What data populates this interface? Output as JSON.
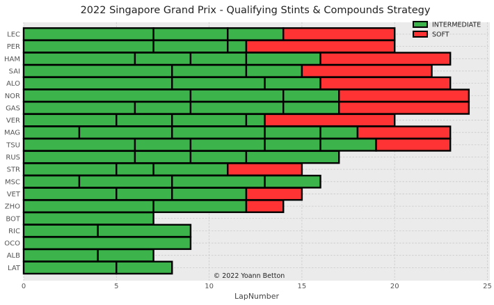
{
  "chart_data": {
    "type": "bar",
    "orientation": "horizontal-stacked",
    "title": "2022 Singapore Grand Prix - Qualifying Stints & Compounds Strategy",
    "xlabel": "LapNumber",
    "ylabel": "",
    "xlim": [
      0,
      25
    ],
    "x_ticks": [
      0,
      5,
      10,
      15,
      20,
      25
    ],
    "grid": true,
    "legend_position": "top-right",
    "annotation": "© 2022 Yoann Betton",
    "compounds": [
      {
        "name": "INTERMEDIATE",
        "color": "#3cb44b"
      },
      {
        "name": "SOFT",
        "color": "#ff3333"
      }
    ],
    "categories": [
      "LEC",
      "PER",
      "HAM",
      "SAI",
      "ALO",
      "NOR",
      "GAS",
      "VER",
      "MAG",
      "TSU",
      "RUS",
      "STR",
      "MSC",
      "VET",
      "ZHO",
      "BOT",
      "RIC",
      "OCO",
      "ALB",
      "LAT"
    ],
    "stints": [
      {
        "driver": "LEC",
        "segments": [
          {
            "laps": 7,
            "compound": "INTERMEDIATE"
          },
          {
            "laps": 4,
            "compound": "INTERMEDIATE"
          },
          {
            "laps": 3,
            "compound": "INTERMEDIATE"
          },
          {
            "laps": 6,
            "compound": "SOFT"
          }
        ]
      },
      {
        "driver": "PER",
        "segments": [
          {
            "laps": 7,
            "compound": "INTERMEDIATE"
          },
          {
            "laps": 4,
            "compound": "INTERMEDIATE"
          },
          {
            "laps": 1,
            "compound": "INTERMEDIATE"
          },
          {
            "laps": 8,
            "compound": "SOFT"
          }
        ]
      },
      {
        "driver": "HAM",
        "segments": [
          {
            "laps": 6,
            "compound": "INTERMEDIATE"
          },
          {
            "laps": 3,
            "compound": "INTERMEDIATE"
          },
          {
            "laps": 3,
            "compound": "INTERMEDIATE"
          },
          {
            "laps": 4,
            "compound": "INTERMEDIATE"
          },
          {
            "laps": 7,
            "compound": "SOFT"
          }
        ]
      },
      {
        "driver": "SAI",
        "segments": [
          {
            "laps": 8,
            "compound": "INTERMEDIATE"
          },
          {
            "laps": 4,
            "compound": "INTERMEDIATE"
          },
          {
            "laps": 3,
            "compound": "INTERMEDIATE"
          },
          {
            "laps": 7,
            "compound": "SOFT"
          }
        ]
      },
      {
        "driver": "ALO",
        "segments": [
          {
            "laps": 8,
            "compound": "INTERMEDIATE"
          },
          {
            "laps": 5,
            "compound": "INTERMEDIATE"
          },
          {
            "laps": 3,
            "compound": "INTERMEDIATE"
          },
          {
            "laps": 7,
            "compound": "SOFT"
          }
        ]
      },
      {
        "driver": "NOR",
        "segments": [
          {
            "laps": 9,
            "compound": "INTERMEDIATE"
          },
          {
            "laps": 5,
            "compound": "INTERMEDIATE"
          },
          {
            "laps": 3,
            "compound": "INTERMEDIATE"
          },
          {
            "laps": 7,
            "compound": "SOFT"
          }
        ]
      },
      {
        "driver": "GAS",
        "segments": [
          {
            "laps": 6,
            "compound": "INTERMEDIATE"
          },
          {
            "laps": 3,
            "compound": "INTERMEDIATE"
          },
          {
            "laps": 5,
            "compound": "INTERMEDIATE"
          },
          {
            "laps": 3,
            "compound": "INTERMEDIATE"
          },
          {
            "laps": 7,
            "compound": "SOFT"
          }
        ]
      },
      {
        "driver": "VER",
        "segments": [
          {
            "laps": 5,
            "compound": "INTERMEDIATE"
          },
          {
            "laps": 3,
            "compound": "INTERMEDIATE"
          },
          {
            "laps": 4,
            "compound": "INTERMEDIATE"
          },
          {
            "laps": 1,
            "compound": "INTERMEDIATE"
          },
          {
            "laps": 7,
            "compound": "SOFT"
          }
        ]
      },
      {
        "driver": "MAG",
        "segments": [
          {
            "laps": 3,
            "compound": "INTERMEDIATE"
          },
          {
            "laps": 5,
            "compound": "INTERMEDIATE"
          },
          {
            "laps": 5,
            "compound": "INTERMEDIATE"
          },
          {
            "laps": 3,
            "compound": "INTERMEDIATE"
          },
          {
            "laps": 2,
            "compound": "INTERMEDIATE"
          },
          {
            "laps": 5,
            "compound": "SOFT"
          }
        ]
      },
      {
        "driver": "TSU",
        "segments": [
          {
            "laps": 6,
            "compound": "INTERMEDIATE"
          },
          {
            "laps": 3,
            "compound": "INTERMEDIATE"
          },
          {
            "laps": 4,
            "compound": "INTERMEDIATE"
          },
          {
            "laps": 3,
            "compound": "INTERMEDIATE"
          },
          {
            "laps": 3,
            "compound": "INTERMEDIATE"
          },
          {
            "laps": 4,
            "compound": "SOFT"
          }
        ]
      },
      {
        "driver": "RUS",
        "segments": [
          {
            "laps": 6,
            "compound": "INTERMEDIATE"
          },
          {
            "laps": 3,
            "compound": "INTERMEDIATE"
          },
          {
            "laps": 3,
            "compound": "INTERMEDIATE"
          },
          {
            "laps": 5,
            "compound": "INTERMEDIATE"
          }
        ]
      },
      {
        "driver": "STR",
        "segments": [
          {
            "laps": 5,
            "compound": "INTERMEDIATE"
          },
          {
            "laps": 2,
            "compound": "INTERMEDIATE"
          },
          {
            "laps": 4,
            "compound": "INTERMEDIATE"
          },
          {
            "laps": 4,
            "compound": "SOFT"
          }
        ]
      },
      {
        "driver": "MSC",
        "segments": [
          {
            "laps": 3,
            "compound": "INTERMEDIATE"
          },
          {
            "laps": 5,
            "compound": "INTERMEDIATE"
          },
          {
            "laps": 5,
            "compound": "INTERMEDIATE"
          },
          {
            "laps": 3,
            "compound": "INTERMEDIATE"
          }
        ]
      },
      {
        "driver": "VET",
        "segments": [
          {
            "laps": 5,
            "compound": "INTERMEDIATE"
          },
          {
            "laps": 3,
            "compound": "INTERMEDIATE"
          },
          {
            "laps": 4,
            "compound": "INTERMEDIATE"
          },
          {
            "laps": 3,
            "compound": "SOFT"
          }
        ]
      },
      {
        "driver": "ZHO",
        "segments": [
          {
            "laps": 7,
            "compound": "INTERMEDIATE"
          },
          {
            "laps": 5,
            "compound": "INTERMEDIATE"
          },
          {
            "laps": 2,
            "compound": "SOFT"
          }
        ]
      },
      {
        "driver": "BOT",
        "segments": [
          {
            "laps": 7,
            "compound": "INTERMEDIATE"
          }
        ]
      },
      {
        "driver": "RIC",
        "segments": [
          {
            "laps": 4,
            "compound": "INTERMEDIATE"
          },
          {
            "laps": 5,
            "compound": "INTERMEDIATE"
          }
        ]
      },
      {
        "driver": "OCO",
        "segments": [
          {
            "laps": 9,
            "compound": "INTERMEDIATE"
          }
        ]
      },
      {
        "driver": "ALB",
        "segments": [
          {
            "laps": 4,
            "compound": "INTERMEDIATE"
          },
          {
            "laps": 3,
            "compound": "INTERMEDIATE"
          }
        ]
      },
      {
        "driver": "LAT",
        "segments": [
          {
            "laps": 5,
            "compound": "INTERMEDIATE"
          },
          {
            "laps": 3,
            "compound": "INTERMEDIATE"
          }
        ]
      }
    ]
  }
}
